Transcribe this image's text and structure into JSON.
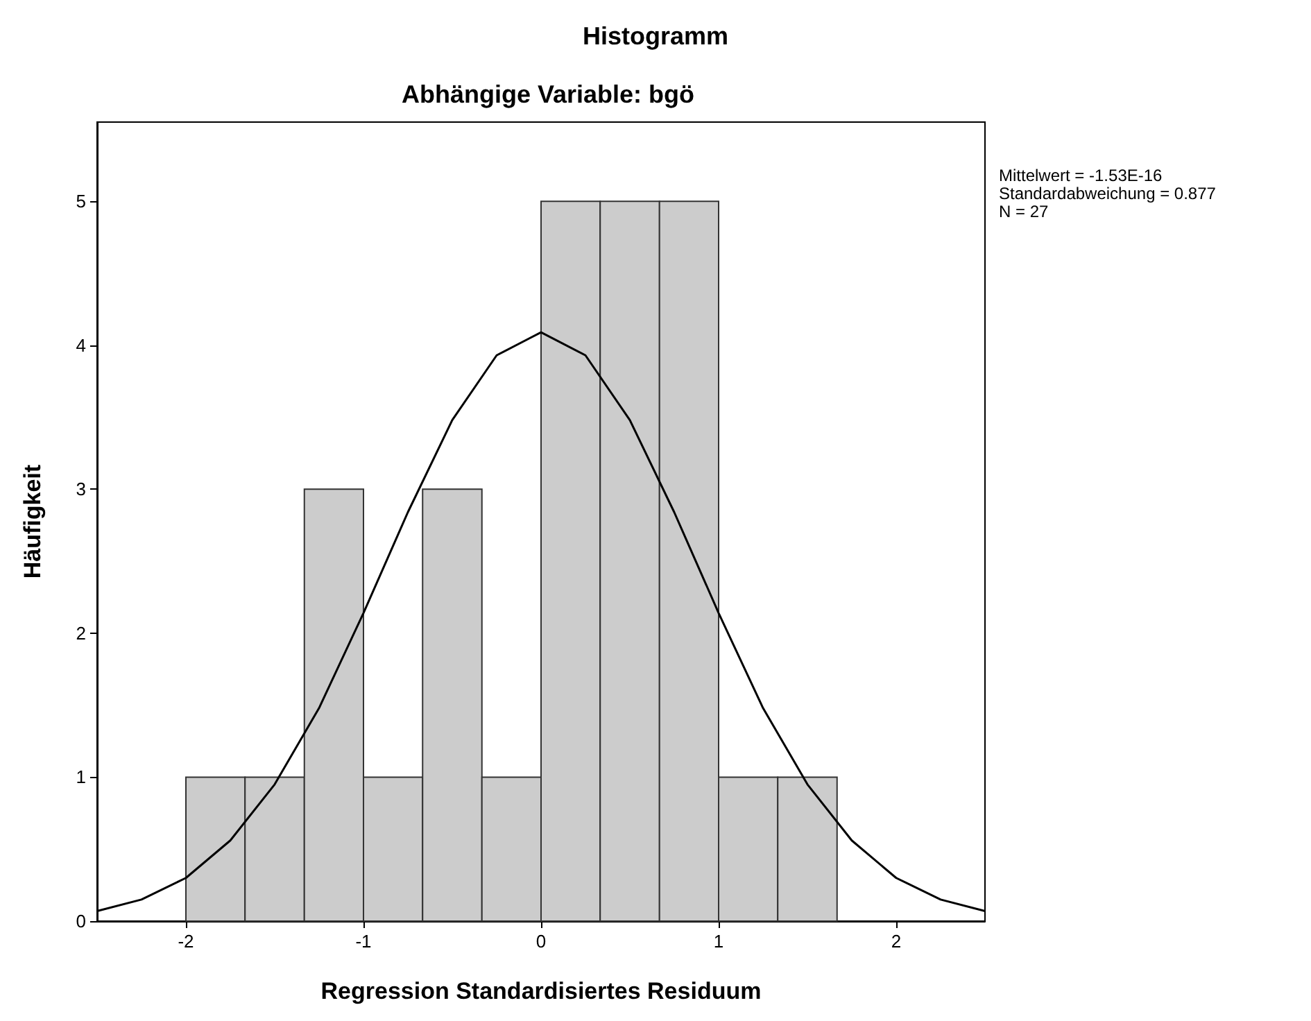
{
  "chart_data": {
    "type": "histogram",
    "title": "Histogramm",
    "subtitle": "Abhängige Variable: bgö",
    "xlabel": "Regression Standardisiertes Residuum",
    "ylabel": "Häufigkeit",
    "bins": [
      -2,
      -1.667,
      -1.333,
      -1,
      -0.667,
      -0.333,
      0,
      0.333,
      0.667,
      1,
      1.333,
      1.667
    ],
    "values": [
      1,
      1,
      3,
      1,
      3,
      1,
      5,
      5,
      5,
      1,
      1
    ],
    "color": "#cccccc",
    "series": [
      {
        "type": "line",
        "color": "#000000",
        "x": [
          -2.5,
          -2.25,
          -2,
          -1.75,
          -1.5,
          -1.25,
          -1,
          -0.75,
          -0.5,
          -0.25,
          0,
          0.25,
          0.5,
          0.75,
          1,
          1.25,
          1.5,
          1.75,
          2,
          2.25,
          2.5
        ],
        "values": [
          0.07,
          0.15,
          0.3,
          0.56,
          0.95,
          1.48,
          2.14,
          2.84,
          3.48,
          3.93,
          4.09,
          3.93,
          3.48,
          2.84,
          2.14,
          1.48,
          0.95,
          0.56,
          0.3,
          0.15,
          0.07
        ]
      }
    ],
    "xlim": [
      -2.5,
      2.5
    ],
    "ylim": [
      0,
      5.55
    ],
    "xticks": [
      -2,
      -1,
      0,
      1,
      2
    ],
    "yticks": [
      0,
      1,
      2,
      3,
      4,
      5
    ],
    "grid": false,
    "annotations": [
      "Mittelwert = -1.53E-16",
      "Standardabweichung = 0.877",
      "N = 27"
    ]
  }
}
